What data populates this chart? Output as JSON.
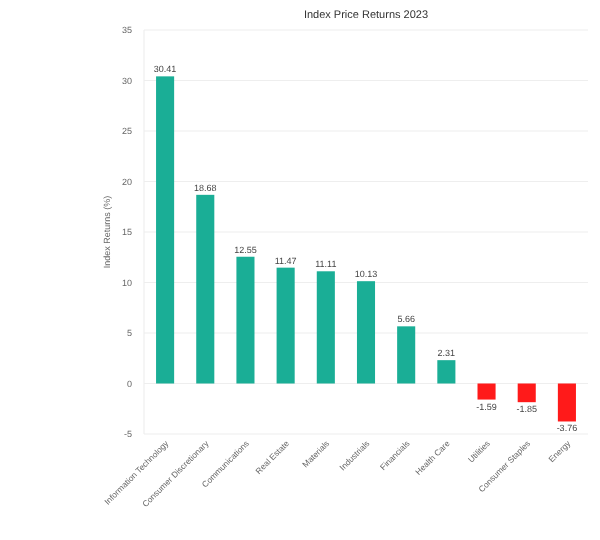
{
  "chart_data": {
    "type": "bar",
    "title": "Index Price Returns 2023",
    "ylabel": "Index Returns (%)",
    "categories": [
      "Information Technology",
      "Consumer Discretionary",
      "Communications",
      "Real Estate",
      "Materials",
      "Industrials",
      "Financials",
      "Health Care",
      "Utilities",
      "Consumer Staples",
      "Energy"
    ],
    "values": [
      30.41,
      18.68,
      12.55,
      11.47,
      11.11,
      10.13,
      5.66,
      2.31,
      -1.59,
      -1.85,
      -3.76
    ],
    "colors": [
      "#1aae96",
      "#1aae96",
      "#1aae96",
      "#1aae96",
      "#1aae96",
      "#1aae96",
      "#1aae96",
      "#1aae96",
      "#ff1a1a",
      "#ff1a1a",
      "#ff1a1a"
    ],
    "ylim": [
      -5,
      35
    ],
    "yticks": [
      -5,
      0,
      5,
      10,
      15,
      20,
      25,
      30,
      35
    ],
    "grid": "y",
    "data_labels": true
  }
}
